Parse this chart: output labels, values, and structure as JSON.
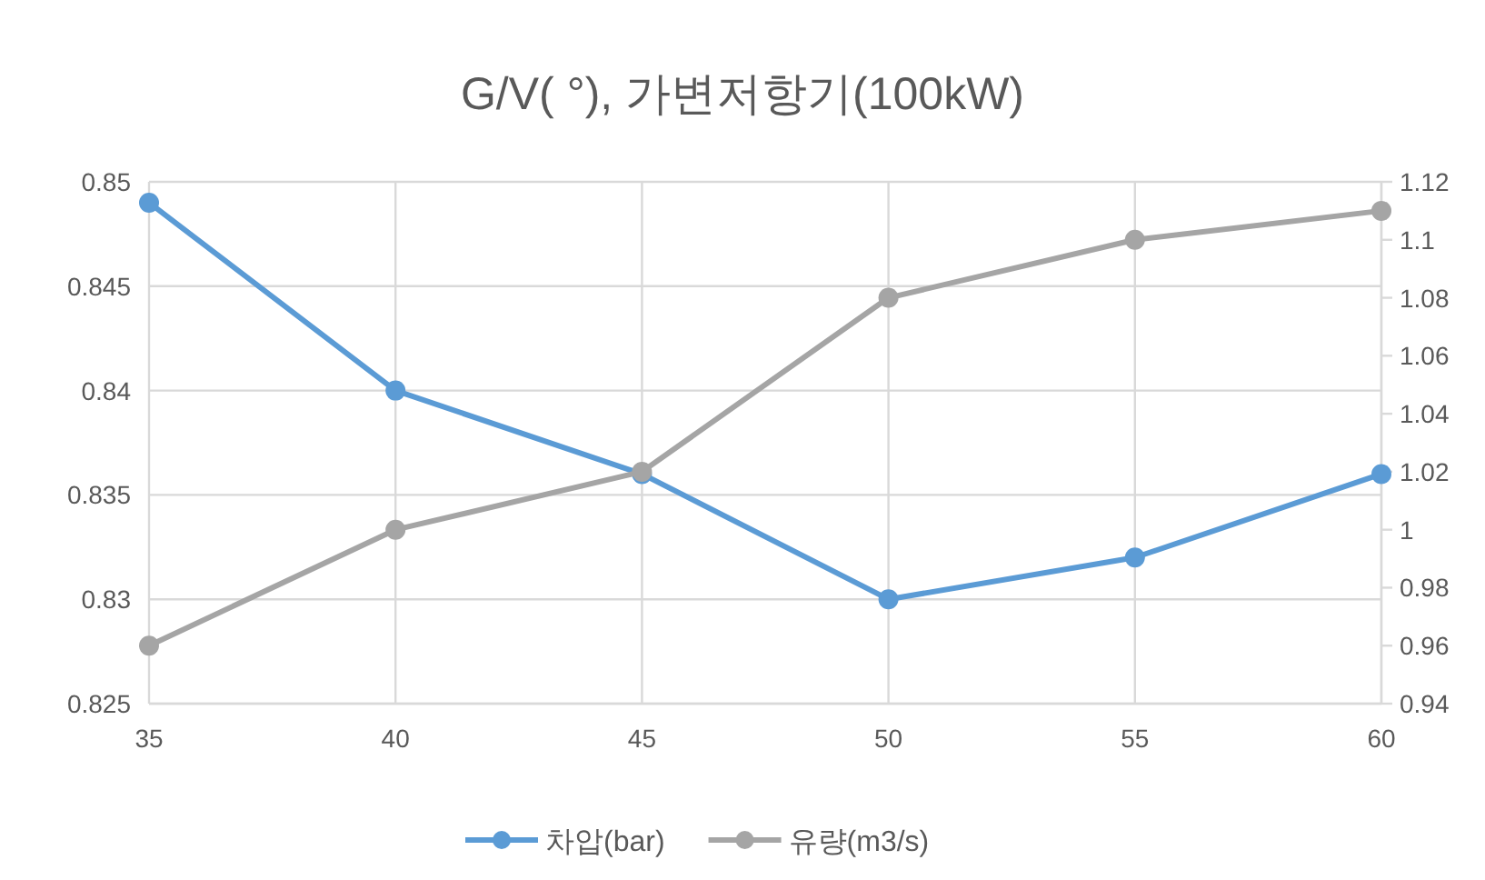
{
  "chart_data": {
    "type": "line",
    "title": "G/V( °), 가변저항기(100kW)",
    "x": [
      35,
      40,
      45,
      50,
      55,
      60
    ],
    "series": [
      {
        "name": "차압(bar)",
        "color": "#5b9bd5",
        "values": [
          0.849,
          0.84,
          0.836,
          0.83,
          0.832,
          0.836
        ]
      },
      {
        "name": "유량(m3/s)",
        "color": "#a5a5a5",
        "axis": "y2",
        "values": [
          0.96,
          1.0,
          1.02,
          1.08,
          1.1,
          1.11
        ]
      }
    ],
    "xlim": [
      35,
      60
    ],
    "xticks": [
      35,
      40,
      45,
      50,
      55,
      60
    ],
    "ylim": [
      0.825,
      0.85
    ],
    "yticks": [
      0.825,
      0.83,
      0.835,
      0.84,
      0.845,
      0.85
    ],
    "y2lim": [
      0.94,
      1.12
    ],
    "y2ticks": [
      0.94,
      0.96,
      0.98,
      1,
      1.02,
      1.04,
      1.06,
      1.08,
      1.1,
      1.12
    ],
    "grid": true,
    "legend": "bottom",
    "marker": "circle",
    "line_style": "solid"
  }
}
